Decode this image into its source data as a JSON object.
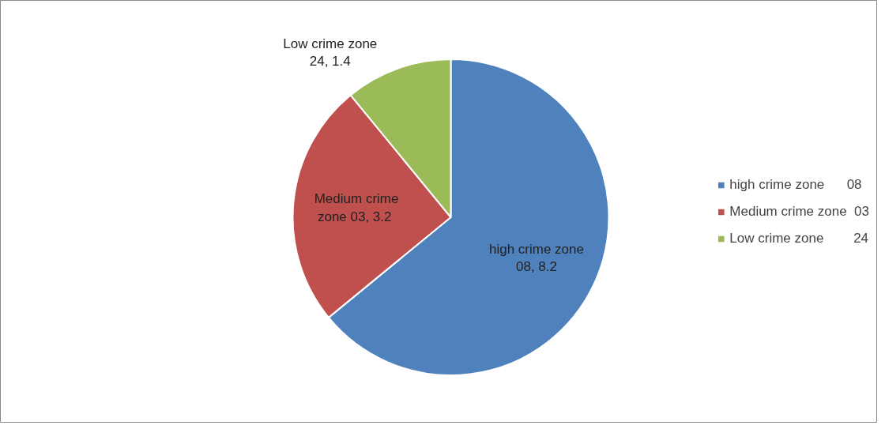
{
  "chart_data": {
    "type": "pie",
    "categories": [
      "high crime zone      08",
      "Medium crime zone  03",
      "Low crime zone        24"
    ],
    "values": [
      8.2,
      3.2,
      1.4
    ],
    "colors": [
      "#4f81bd",
      "#c0504d",
      "#9bbb59"
    ],
    "value_labels": [
      "high crime zone\n08, 8.2",
      "Medium crime\nzone  03, 3.2",
      "Low crime zone\n24, 1.4"
    ],
    "legend": "right"
  }
}
